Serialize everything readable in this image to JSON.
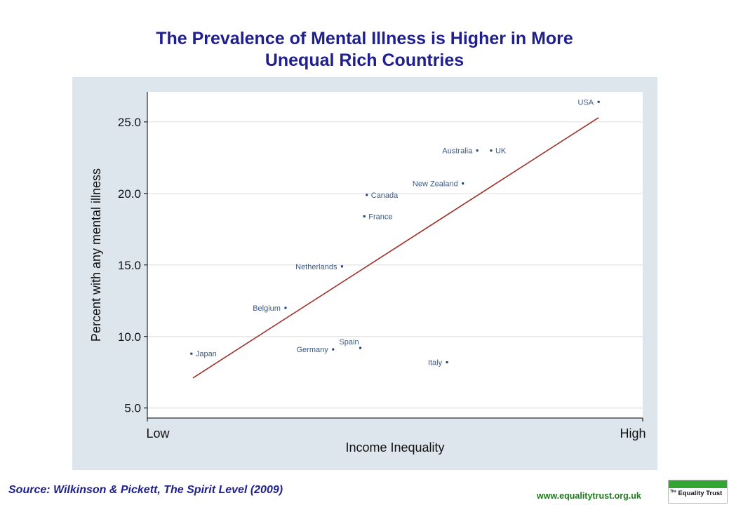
{
  "title": {
    "line1": "The Prevalence of Mental Illness is Higher in More",
    "line2": "Unequal Rich Countries"
  },
  "source": "Source: Wilkinson & Pickett, The Spirit Level (2009)",
  "website": "www.equalitytrust.org.uk",
  "logo": {
    "small": "The",
    "main": "Equality Trust"
  },
  "chart_data": {
    "type": "scatter",
    "xlabel": "Income Inequality",
    "ylabel": "Percent with any mental illness",
    "x_tick_labels": [
      {
        "value": 0,
        "label": "Low"
      },
      {
        "value": 100,
        "label": "High"
      }
    ],
    "xlim": [
      0,
      100
    ],
    "ylim": [
      4.3,
      27.1
    ],
    "y_ticks": [
      {
        "value": 5,
        "label": "5.0"
      },
      {
        "value": 10,
        "label": "10.0"
      },
      {
        "value": 15,
        "label": "15.0"
      },
      {
        "value": 20,
        "label": "20.0"
      },
      {
        "value": 25,
        "label": "25.0"
      }
    ],
    "grid": true,
    "points": [
      {
        "label": "USA",
        "x": 91.1,
        "y": 26.4,
        "label_side": "left"
      },
      {
        "label": "Australia",
        "x": 66.6,
        "y": 23.0,
        "label_side": "left"
      },
      {
        "label": "UK",
        "x": 69.4,
        "y": 23.0,
        "label_side": "right"
      },
      {
        "label": "New Zealand",
        "x": 63.7,
        "y": 20.7,
        "label_side": "left"
      },
      {
        "label": "Canada",
        "x": 44.3,
        "y": 19.9,
        "label_side": "right"
      },
      {
        "label": "France",
        "x": 43.8,
        "y": 18.4,
        "label_side": "right"
      },
      {
        "label": "Netherlands",
        "x": 39.3,
        "y": 14.9,
        "label_side": "left"
      },
      {
        "label": "Belgium",
        "x": 27.9,
        "y": 12.0,
        "label_side": "left"
      },
      {
        "label": "Japan",
        "x": 8.9,
        "y": 8.8,
        "label_side": "right"
      },
      {
        "label": "Germany",
        "x": 37.5,
        "y": 9.1,
        "label_side": "left"
      },
      {
        "label": "Spain",
        "x": 43.0,
        "y": 9.2,
        "label_side": "above"
      },
      {
        "label": "Italy",
        "x": 60.5,
        "y": 8.2,
        "label_side": "left"
      }
    ],
    "trend_line": {
      "x": [
        9.2,
        91.1
      ],
      "y": [
        7.1,
        25.3
      ],
      "color": "#a0302a"
    },
    "colors": {
      "point": "#1f3f7a",
      "point_label": "#3a5a8a",
      "grid": "#e3e3e3",
      "plot_bg": "#ffffff",
      "panel_bg": "#dde6ed"
    }
  }
}
